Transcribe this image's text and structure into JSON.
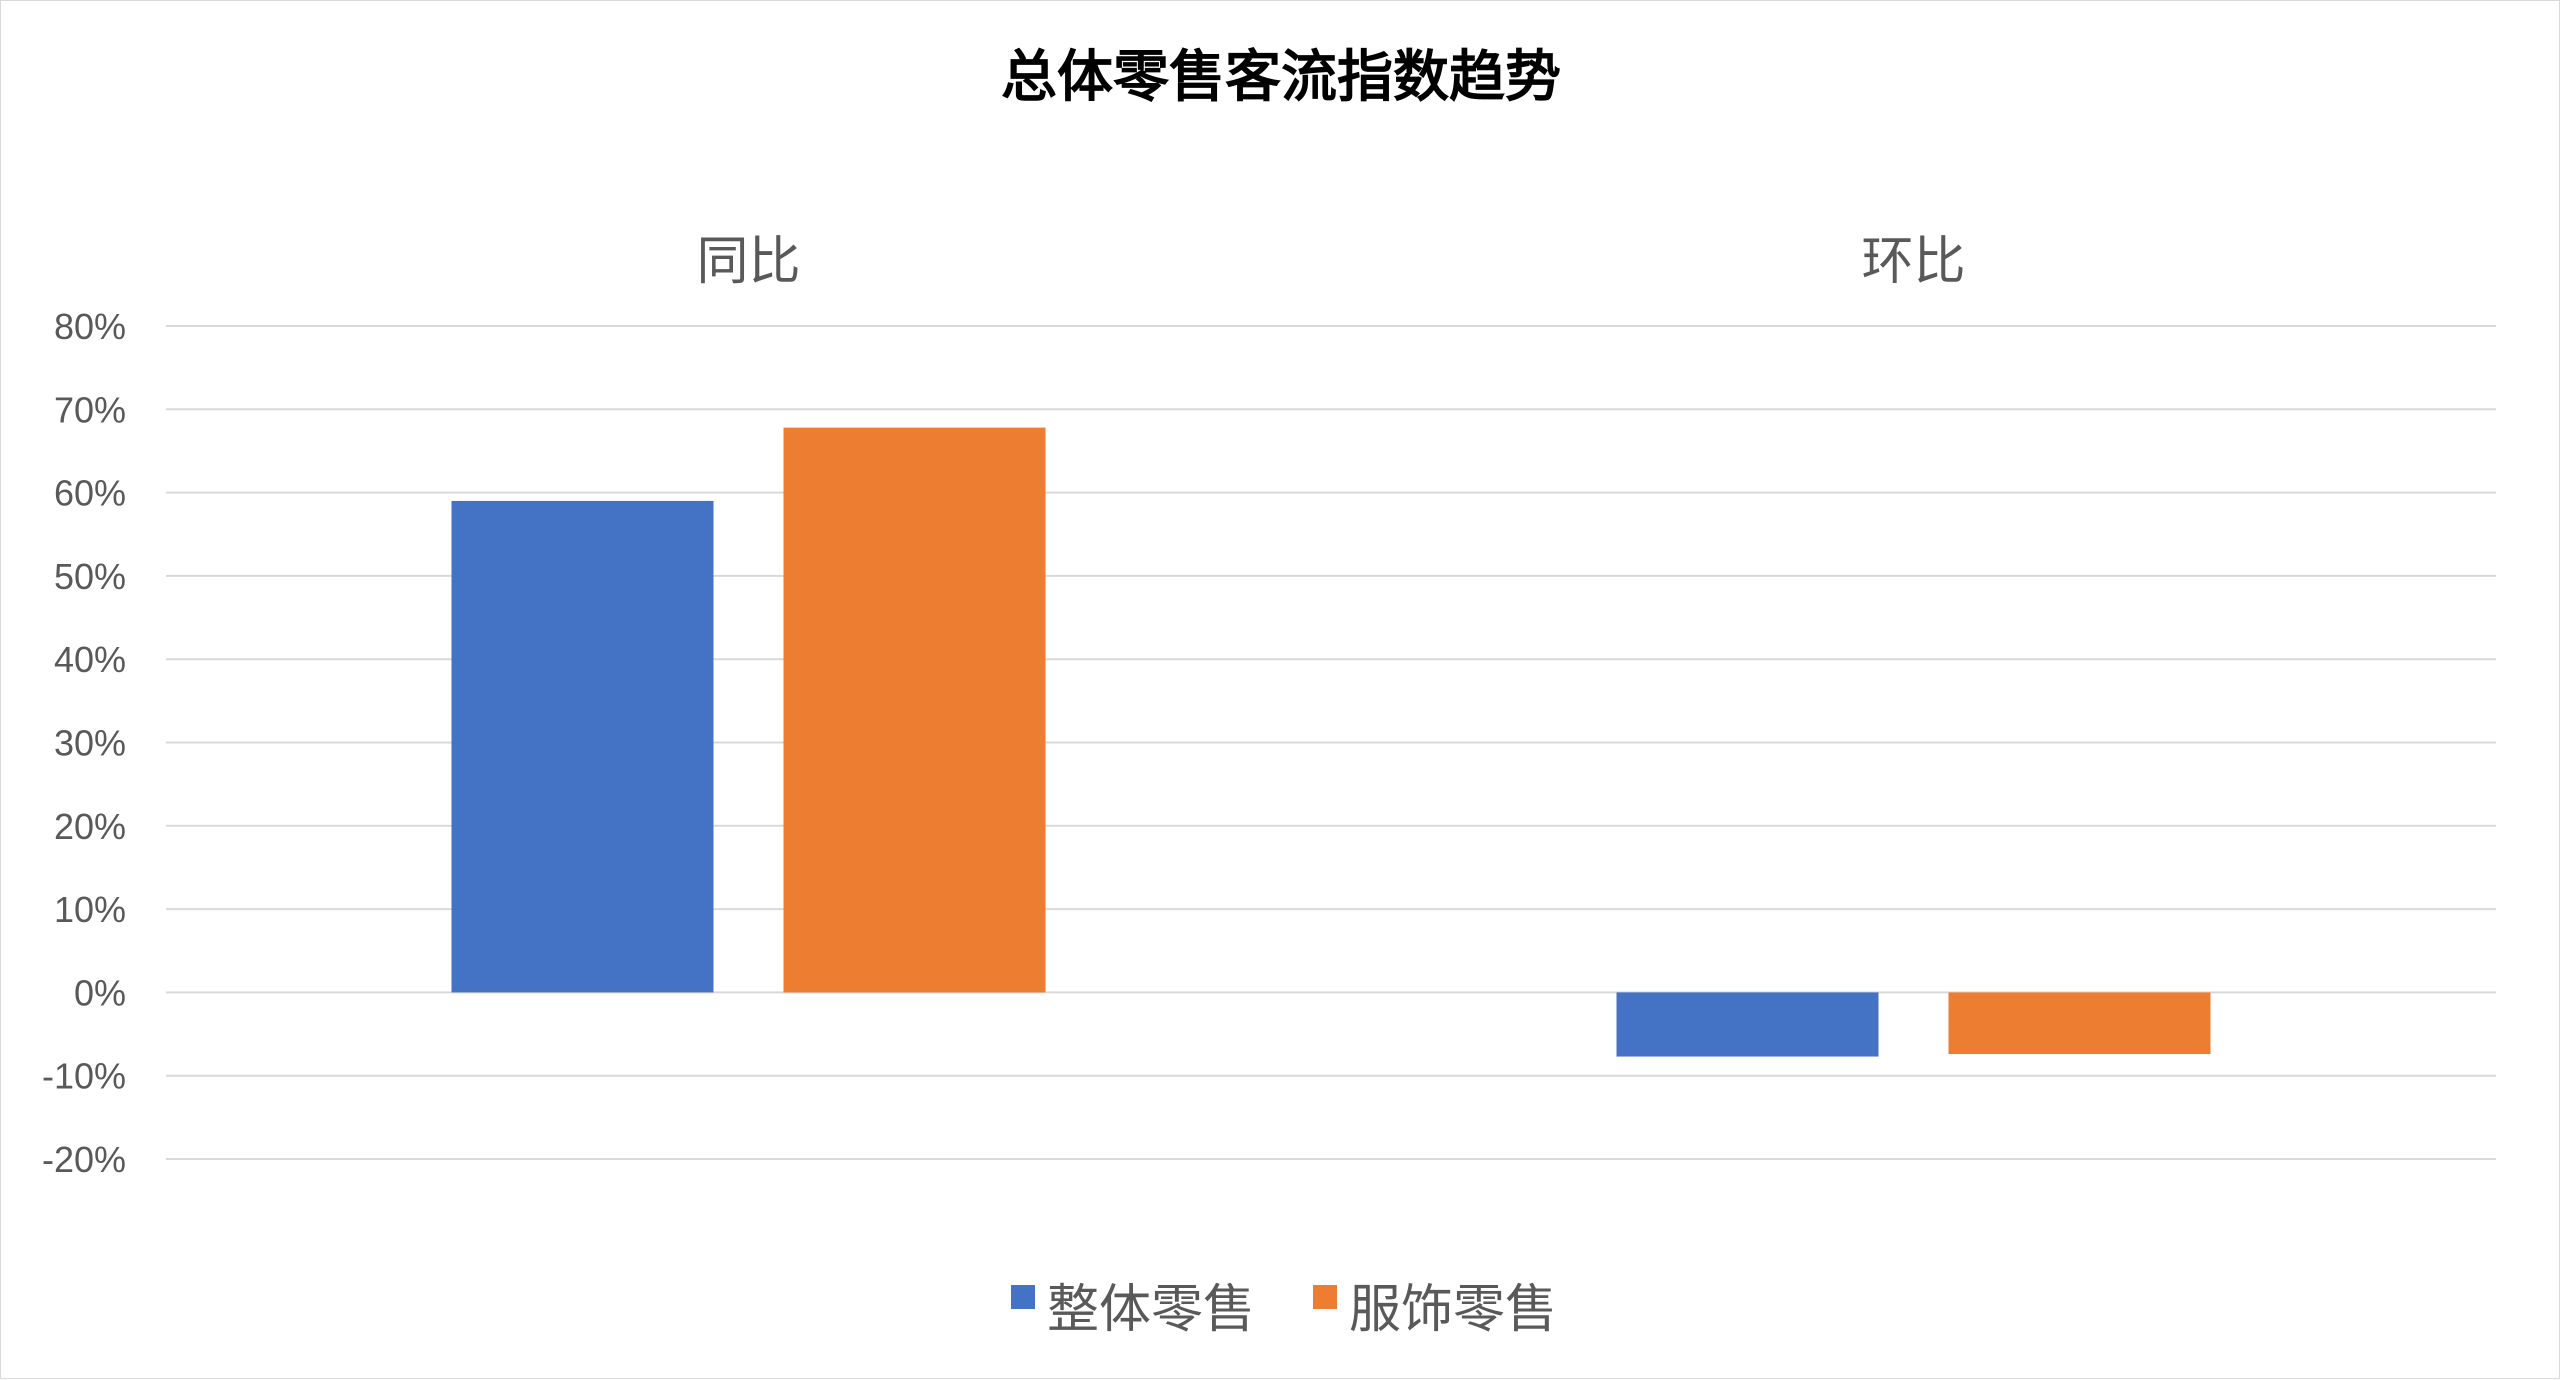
{
  "chart_data": {
    "type": "bar",
    "title": "总体零售客流指数趋势",
    "categories": [
      "同比",
      "环比"
    ],
    "category_axis_position": "top",
    "series": [
      {
        "name": "整体零售",
        "color": "#4472C4",
        "values": [
          0.59,
          -0.077
        ]
      },
      {
        "name": "服饰零售",
        "color": "#ED7D31",
        "values": [
          0.678,
          -0.074
        ]
      }
    ],
    "ylim": [
      -0.2,
      0.8
    ],
    "yticks": [
      {
        "value": 0.8,
        "label": "80%"
      },
      {
        "value": 0.7,
        "label": "70%"
      },
      {
        "value": 0.6,
        "label": "60%"
      },
      {
        "value": 0.5,
        "label": "50%"
      },
      {
        "value": 0.4,
        "label": "40%"
      },
      {
        "value": 0.3,
        "label": "30%"
      },
      {
        "value": 0.2,
        "label": "20%"
      },
      {
        "value": 0.1,
        "label": "10%"
      },
      {
        "value": 0.0,
        "label": "0%"
      },
      {
        "value": -0.1,
        "label": "-10%"
      },
      {
        "value": -0.2,
        "label": "-20%"
      }
    ],
    "grid": true,
    "legend": "bottom"
  }
}
